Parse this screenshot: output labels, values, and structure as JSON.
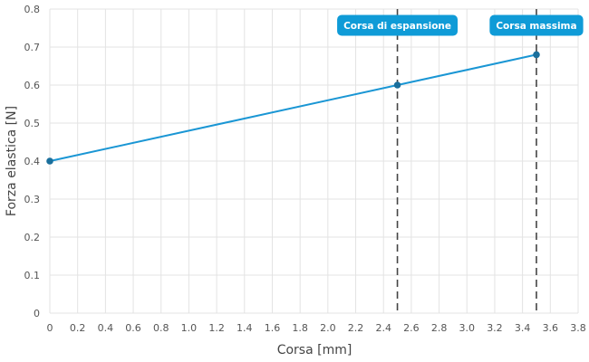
{
  "chart_data": {
    "type": "line",
    "title": "",
    "xlabel": "Corsa [mm]",
    "ylabel": "Forza elastica [N]",
    "xlim": [
      0,
      3.8
    ],
    "ylim": [
      0,
      0.8
    ],
    "x_ticks": [
      0,
      0.2,
      0.4,
      0.6,
      0.8,
      1.0,
      1.2,
      1.4,
      1.6,
      1.8,
      2.0,
      2.2,
      2.4,
      2.6,
      2.8,
      3.0,
      3.2,
      3.4,
      3.6,
      3.8
    ],
    "x_tick_labels": [
      "0",
      "0.2",
      "0.4",
      "0.6",
      "0.8",
      "1.0",
      "1.2",
      "1.4",
      "1.6",
      "1.8",
      "2.0",
      "2.2",
      "2.4",
      "2.6",
      "2.8",
      "3.0",
      "3.2",
      "3.4",
      "3.6",
      "3.8"
    ],
    "y_ticks": [
      0,
      0.1,
      0.2,
      0.3,
      0.4,
      0.5,
      0.6,
      0.7,
      0.8
    ],
    "y_tick_labels": [
      "0",
      "0.1",
      "0.2",
      "0.3",
      "0.4",
      "0.5",
      "0.6",
      "0.7",
      "0.8"
    ],
    "grid": true,
    "legend": "none",
    "series": [
      {
        "x": [
          0,
          2.5,
          3.5
        ],
        "y": [
          0.4,
          0.6,
          0.68
        ],
        "color": "#1a96d4",
        "marker_color": "#1a6f9c"
      }
    ],
    "annotations": [
      {
        "x": 2.5,
        "label": "Corsa di espansione",
        "color": "#0f9bd7"
      },
      {
        "x": 3.5,
        "label": "Corsa massima",
        "color": "#0f9bd7"
      }
    ]
  }
}
